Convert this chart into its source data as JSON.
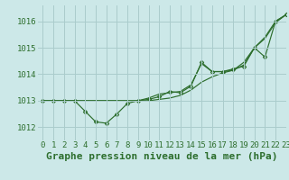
{
  "background_color": "#cce8e8",
  "grid_color": "#aacccc",
  "line_color": "#2d6e2d",
  "marker_color": "#2d6e2d",
  "title": "Graphe pression niveau de la mer (hPa)",
  "xlim": [
    -0.5,
    23
  ],
  "ylim": [
    1011.5,
    1016.6
  ],
  "yticks": [
    1012,
    1013,
    1014,
    1015,
    1016
  ],
  "xtick_labels": [
    "0",
    "1",
    "2",
    "3",
    "4",
    "5",
    "6",
    "7",
    "8",
    "9",
    "10",
    "11",
    "12",
    "13",
    "14",
    "15",
    "16",
    "17",
    "18",
    "19",
    "20",
    "21",
    "22",
    "23"
  ],
  "series_with_markers": [
    [
      1013.0,
      1013.0,
      1013.0,
      1013.0,
      1012.6,
      1012.2,
      1012.15,
      1012.5,
      1012.9,
      1013.0,
      1013.05,
      1013.15,
      1013.35,
      1013.3,
      1013.55,
      1014.45,
      1014.1,
      1014.1,
      1014.2,
      1014.3,
      1015.0,
      1014.65,
      1016.0,
      1016.25
    ]
  ],
  "series_smooth": [
    [
      1013.0,
      1013.0,
      1013.0,
      1013.0,
      1013.0,
      1013.0,
      1013.0,
      1013.0,
      1013.0,
      1013.0,
      1013.0,
      1013.05,
      1013.1,
      1013.2,
      1013.4,
      1013.7,
      1013.9,
      1014.05,
      1014.15,
      1014.35,
      1015.0,
      1015.4,
      1016.0,
      1016.25
    ],
    [
      1013.0,
      1013.0,
      1013.0,
      1013.0,
      1013.0,
      1013.0,
      1013.0,
      1013.0,
      1013.0,
      1013.0,
      1013.1,
      1013.25,
      1013.3,
      1013.35,
      1013.6,
      1014.4,
      1014.1,
      1014.1,
      1014.15,
      1014.45,
      1015.0,
      1015.35,
      1015.95,
      1016.25
    ]
  ],
  "title_fontsize": 8,
  "tick_fontsize": 6.5,
  "figsize": [
    3.2,
    2.0
  ],
  "dpi": 100
}
